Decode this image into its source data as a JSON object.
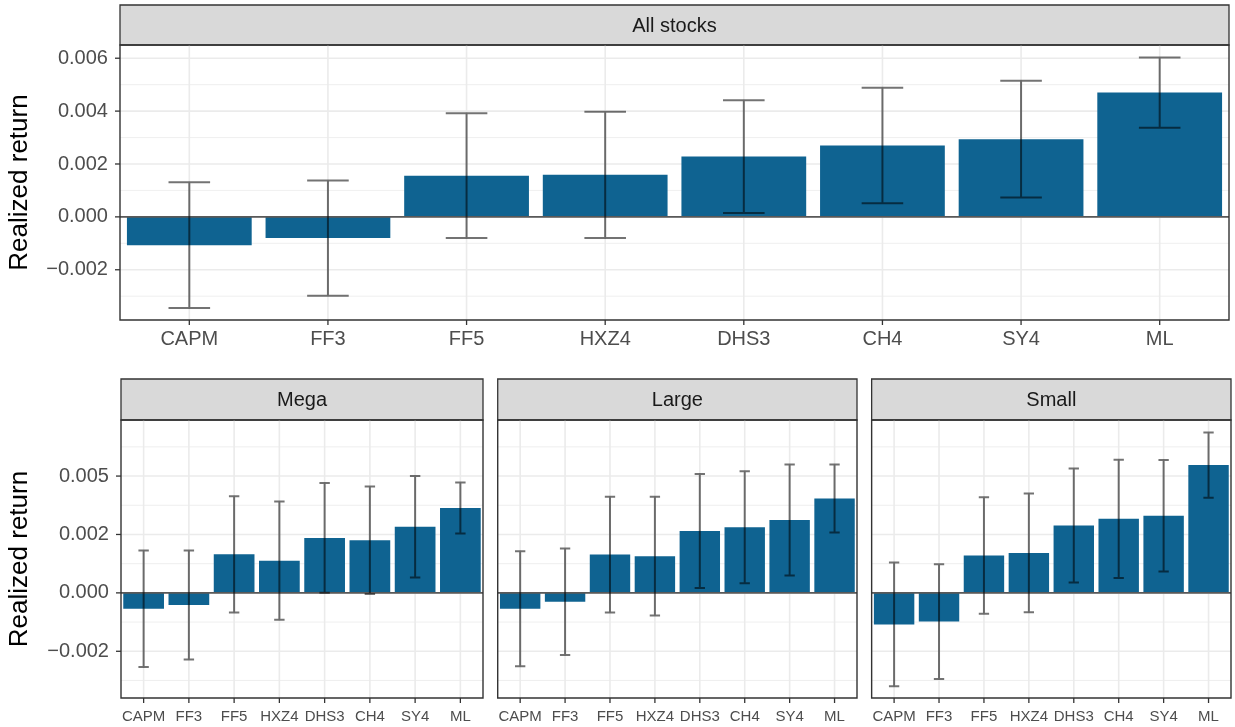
{
  "chart_data": [
    {
      "type": "bar",
      "title": "All stocks",
      "ylabel": "Realized return",
      "categories": [
        "CAPM",
        "FF3",
        "FF5",
        "HXZ4",
        "DHS3",
        "CH4",
        "SY4",
        "ML"
      ],
      "values": [
        -0.00107,
        -0.0008,
        0.00156,
        0.00159,
        0.00228,
        0.0027,
        0.00294,
        0.0047
      ],
      "errors": [
        0.00238,
        0.00218,
        0.00236,
        0.00239,
        0.00213,
        0.00218,
        0.00221,
        0.00133
      ],
      "color": "#0f6391",
      "ylim": [
        -0.0039,
        0.0065
      ],
      "yticks": [
        {
          "value": -0.002,
          "label": "−0.002"
        },
        {
          "value": 0,
          "label": "0.000"
        },
        0.002,
        0.004,
        0.006
      ],
      "grid": true,
      "ref_lines": [
        {
          "axis": "y",
          "value": 0,
          "color": "#595959"
        }
      ]
    },
    {
      "type": "bar",
      "title": "Mega",
      "ylabel": "Realized return",
      "categories": [
        "CAPM",
        "FF3",
        "FF5",
        "HXZ4",
        "DHS3",
        "CH4",
        "SY4",
        "ML"
      ],
      "values": [
        -0.00068,
        -0.00052,
        0.00165,
        0.00138,
        0.00235,
        0.00225,
        0.00283,
        0.00363
      ],
      "errors": [
        0.00249,
        0.00233,
        0.00249,
        0.00253,
        0.00235,
        0.0023,
        0.00217,
        0.00109
      ],
      "color": "#0f6391",
      "ylim": [
        -0.0045,
        0.0074
      ],
      "yticks": [
        {
          "value": -0.0025,
          "label": "−0.002"
        },
        {
          "value": 0,
          "label": "0.000"
        },
        {
          "value": 0.0025,
          "label": "0.002"
        },
        0.005
      ],
      "grid": true,
      "ref_lines": [
        {
          "axis": "y",
          "value": 0,
          "color": "#595959"
        }
      ]
    },
    {
      "type": "bar",
      "title": "Large",
      "categories": [
        "CAPM",
        "FF3",
        "FF5",
        "HXZ4",
        "DHS3",
        "CH4",
        "SY4",
        "ML"
      ],
      "values": [
        -0.00068,
        -0.00038,
        0.00164,
        0.00157,
        0.00265,
        0.00281,
        0.00312,
        0.00404
      ],
      "errors": [
        0.00246,
        0.00228,
        0.00248,
        0.00254,
        0.00244,
        0.0024,
        0.00238,
        0.00146
      ],
      "color": "#0f6391",
      "ylim": [
        -0.0045,
        0.0074
      ],
      "yticks": [
        -0.0025,
        0,
        0.0025,
        0.005
      ],
      "grid": true,
      "tick_labels": "x",
      "ref_lines": [
        {
          "axis": "y",
          "value": 0,
          "color": "#595959"
        }
      ]
    },
    {
      "type": "bar",
      "title": "Small",
      "categories": [
        "CAPM",
        "FF3",
        "FF5",
        "HXZ4",
        "DHS3",
        "CH4",
        "SY4",
        "ML"
      ],
      "values": [
        -0.00135,
        -0.00123,
        0.0016,
        0.00171,
        0.00288,
        0.00317,
        0.0033,
        0.00547
      ],
      "errors": [
        0.00265,
        0.00246,
        0.00249,
        0.00254,
        0.00244,
        0.00253,
        0.00239,
        0.0014
      ],
      "color": "#0f6391",
      "ylim": [
        -0.0045,
        0.0074
      ],
      "yticks": [
        -0.0025,
        0,
        0.0025,
        0.005
      ],
      "grid": true,
      "tick_labels": "x",
      "ref_lines": [
        {
          "axis": "y",
          "value": 0,
          "color": "#595959"
        }
      ]
    }
  ]
}
